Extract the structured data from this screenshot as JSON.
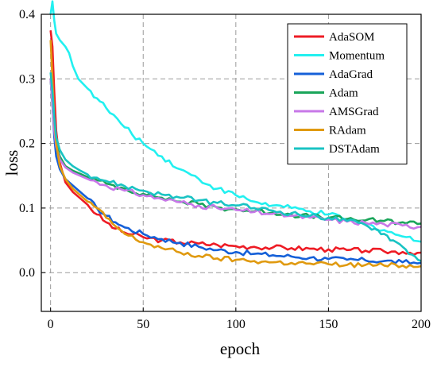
{
  "chart_data": {
    "type": "line",
    "xlabel": "epoch",
    "ylabel": "loss",
    "xlim": [
      -5,
      200
    ],
    "ylim": [
      -0.06,
      0.4
    ],
    "xticks": [
      0,
      50,
      100,
      150,
      200
    ],
    "yticks": [
      0.0,
      0.1,
      0.2,
      0.3,
      0.4
    ],
    "xtick_labels": [
      "0",
      "50",
      "100",
      "150",
      "200"
    ],
    "ytick_labels": [
      "0.0",
      "0.1",
      "0.2",
      "0.3",
      "0.4"
    ],
    "grid": true,
    "legend_position": "top-right",
    "series": [
      {
        "name": "AdaSOM",
        "color": "#ee1c25",
        "x": [
          0,
          1,
          2,
          3,
          5,
          8,
          12,
          16,
          20,
          25,
          30,
          35,
          40,
          50,
          60,
          70,
          80,
          90,
          100,
          110,
          120,
          130,
          140,
          150,
          160,
          170,
          180,
          190,
          200
        ],
        "y": [
          0.375,
          0.35,
          0.28,
          0.22,
          0.17,
          0.14,
          0.125,
          0.115,
          0.105,
          0.09,
          0.078,
          0.068,
          0.062,
          0.055,
          0.05,
          0.047,
          0.045,
          0.043,
          0.041,
          0.04,
          0.039,
          0.038,
          0.037,
          0.036,
          0.035,
          0.034,
          0.033,
          0.032,
          0.031
        ]
      },
      {
        "name": "Momentum",
        "color": "#22f0f0",
        "x": [
          0,
          1,
          2,
          3,
          5,
          8,
          10,
          12,
          15,
          20,
          25,
          30,
          40,
          50,
          60,
          70,
          80,
          90,
          100,
          110,
          120,
          130,
          140,
          150,
          160,
          170,
          180,
          190,
          200
        ],
        "y": [
          0.4,
          0.42,
          0.39,
          0.37,
          0.36,
          0.35,
          0.34,
          0.32,
          0.3,
          0.285,
          0.27,
          0.255,
          0.225,
          0.2,
          0.18,
          0.16,
          0.145,
          0.13,
          0.12,
          0.11,
          0.104,
          0.1,
          0.095,
          0.09,
          0.083,
          0.075,
          0.066,
          0.056,
          0.048
        ]
      },
      {
        "name": "AdaGrad",
        "color": "#1560d8",
        "x": [
          0,
          1,
          2,
          3,
          5,
          8,
          12,
          16,
          20,
          25,
          30,
          35,
          40,
          50,
          60,
          70,
          80,
          90,
          100,
          110,
          120,
          130,
          140,
          150,
          160,
          170,
          180,
          190,
          200
        ],
        "y": [
          0.3,
          0.26,
          0.21,
          0.18,
          0.16,
          0.145,
          0.135,
          0.125,
          0.115,
          0.1,
          0.088,
          0.078,
          0.07,
          0.06,
          0.052,
          0.046,
          0.04,
          0.035,
          0.032,
          0.029,
          0.027,
          0.025,
          0.023,
          0.021,
          0.02,
          0.019,
          0.018,
          0.016,
          0.015
        ]
      },
      {
        "name": "Adam",
        "color": "#1aa55a",
        "x": [
          0,
          1,
          2,
          3,
          5,
          8,
          12,
          16,
          20,
          25,
          30,
          40,
          50,
          60,
          70,
          80,
          90,
          100,
          110,
          120,
          130,
          140,
          150,
          160,
          170,
          180,
          190,
          200
        ],
        "y": [
          0.3,
          0.26,
          0.22,
          0.2,
          0.18,
          0.165,
          0.158,
          0.153,
          0.148,
          0.143,
          0.138,
          0.13,
          0.122,
          0.116,
          0.11,
          0.106,
          0.101,
          0.098,
          0.095,
          0.093,
          0.09,
          0.087,
          0.085,
          0.083,
          0.081,
          0.08,
          0.078,
          0.076
        ]
      },
      {
        "name": "AMSGrad",
        "color": "#c878e8",
        "x": [
          0,
          1,
          2,
          3,
          5,
          8,
          12,
          16,
          20,
          25,
          30,
          40,
          50,
          60,
          70,
          80,
          90,
          100,
          110,
          120,
          130,
          140,
          150,
          160,
          170,
          180,
          190,
          200
        ],
        "y": [
          0.3,
          0.26,
          0.22,
          0.195,
          0.175,
          0.163,
          0.155,
          0.15,
          0.145,
          0.14,
          0.135,
          0.127,
          0.12,
          0.114,
          0.109,
          0.104,
          0.1,
          0.097,
          0.094,
          0.091,
          0.088,
          0.085,
          0.082,
          0.079,
          0.077,
          0.075,
          0.073,
          0.071
        ]
      },
      {
        "name": "RAdam",
        "color": "#e09a10",
        "x": [
          0,
          1,
          2,
          3,
          5,
          8,
          12,
          16,
          20,
          25,
          30,
          35,
          40,
          50,
          60,
          70,
          80,
          90,
          100,
          110,
          120,
          130,
          140,
          150,
          160,
          170,
          180,
          190,
          200
        ],
        "y": [
          0.36,
          0.3,
          0.24,
          0.2,
          0.165,
          0.145,
          0.13,
          0.12,
          0.11,
          0.1,
          0.085,
          0.072,
          0.06,
          0.047,
          0.038,
          0.031,
          0.026,
          0.022,
          0.02,
          0.018,
          0.016,
          0.015,
          0.014,
          0.013,
          0.012,
          0.012,
          0.011,
          0.011,
          0.01
        ]
      },
      {
        "name": "DSTAdam",
        "color": "#19c3c3",
        "x": [
          0,
          1,
          2,
          3,
          5,
          8,
          12,
          16,
          20,
          25,
          30,
          40,
          50,
          60,
          70,
          80,
          90,
          100,
          110,
          120,
          130,
          140,
          150,
          160,
          170,
          175,
          180,
          185,
          190,
          195,
          200
        ],
        "y": [
          0.31,
          0.28,
          0.24,
          0.21,
          0.19,
          0.175,
          0.165,
          0.158,
          0.152,
          0.147,
          0.142,
          0.134,
          0.127,
          0.121,
          0.116,
          0.112,
          0.108,
          0.104,
          0.1,
          0.096,
          0.092,
          0.088,
          0.085,
          0.08,
          0.074,
          0.068,
          0.06,
          0.05,
          0.04,
          0.028,
          0.018
        ]
      }
    ]
  }
}
